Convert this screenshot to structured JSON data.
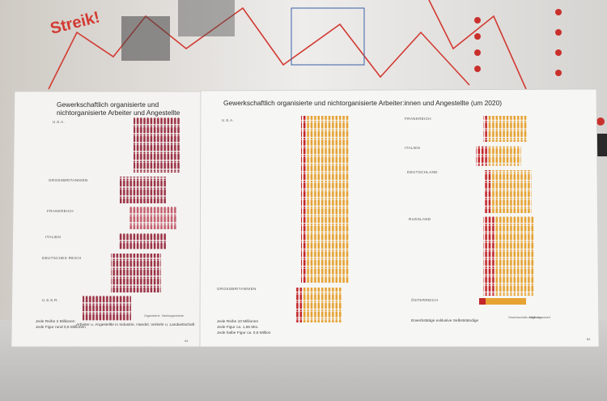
{
  "wall": {
    "poster_text": "Streik!"
  },
  "left_panel": {
    "title_lines": [
      "Gewerkschaftlich organisierte und",
      "nichtorganisierte Arbeiter und Angestellte"
    ],
    "countries": [
      "U.S.A.",
      "GROSSBRITANNIEN",
      "FRANKREICH",
      "ITALIEN",
      "DEUTSCHES REICH",
      "U.S.S.R."
    ],
    "legend": [
      "Organisierte",
      "Nichtorganisierte"
    ],
    "scale_lines": [
      "Jede Reihe      2 Millionen",
      "Jede Figur rund 0,5 Millionen"
    ],
    "note": "Arbeiter u. Angestellte in Industrie, Handel, Verkehr u. Landwirtschaft",
    "page": "A4"
  },
  "right_panel": {
    "title": "Gewerkschaftlich organisierte und nichtorganisierte Arbeiter:innen und Angestellte (um 2020)",
    "countries": [
      "U.S.A.",
      "GROSSBRITANNIEN",
      "FRANKREICH",
      "ITALIEN",
      "DEUTSCHLAND",
      "RUSSLAND",
      "ÖSTERREICH"
    ],
    "scale_lines": [
      "Jede Reihe 10 Millionen",
      "Jede Figur ca. 1,66 Mio.",
      "Jede halbe Figur ca. 0,8 Million"
    ],
    "note": "Erwerbstätige exklusive Selbstständige",
    "legend": [
      "Gewerkschafts-mitglieder",
      "Nicht organisiert"
    ],
    "page": "B4"
  }
}
